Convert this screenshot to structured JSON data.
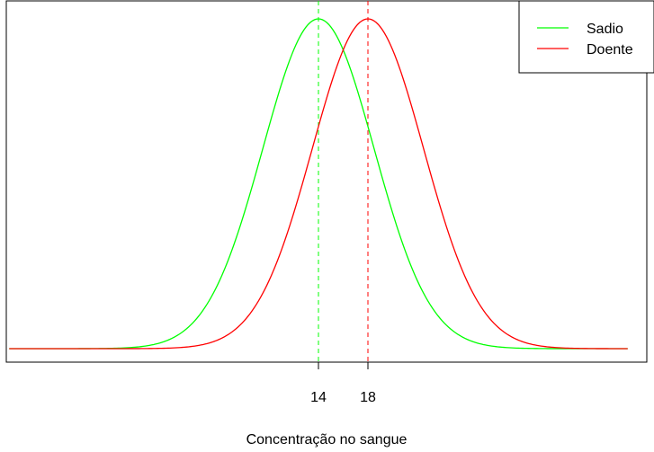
{
  "chart_data": {
    "type": "line",
    "xlabel": "Concentração no sangue",
    "ylabel": "",
    "xticks": [
      14,
      18
    ],
    "xlim": [
      -11,
      39
    ],
    "ylim": [
      0,
      1
    ],
    "grid": false,
    "legend_position": "top-right",
    "series": [
      {
        "name": "Sadio",
        "color": "#00ff00",
        "distribution": "normal",
        "mean": 14,
        "sd": 4.5,
        "x_from": -11,
        "x_to": 39
      },
      {
        "name": "Doente",
        "color": "#ff0000",
        "distribution": "normal",
        "mean": 18,
        "sd": 4.5,
        "x_from": -11,
        "x_to": 39
      }
    ],
    "vlines": [
      {
        "x": 14,
        "color": "#00ff00",
        "style": "dashed"
      },
      {
        "x": 18,
        "color": "#ff0000",
        "style": "dashed"
      }
    ]
  }
}
